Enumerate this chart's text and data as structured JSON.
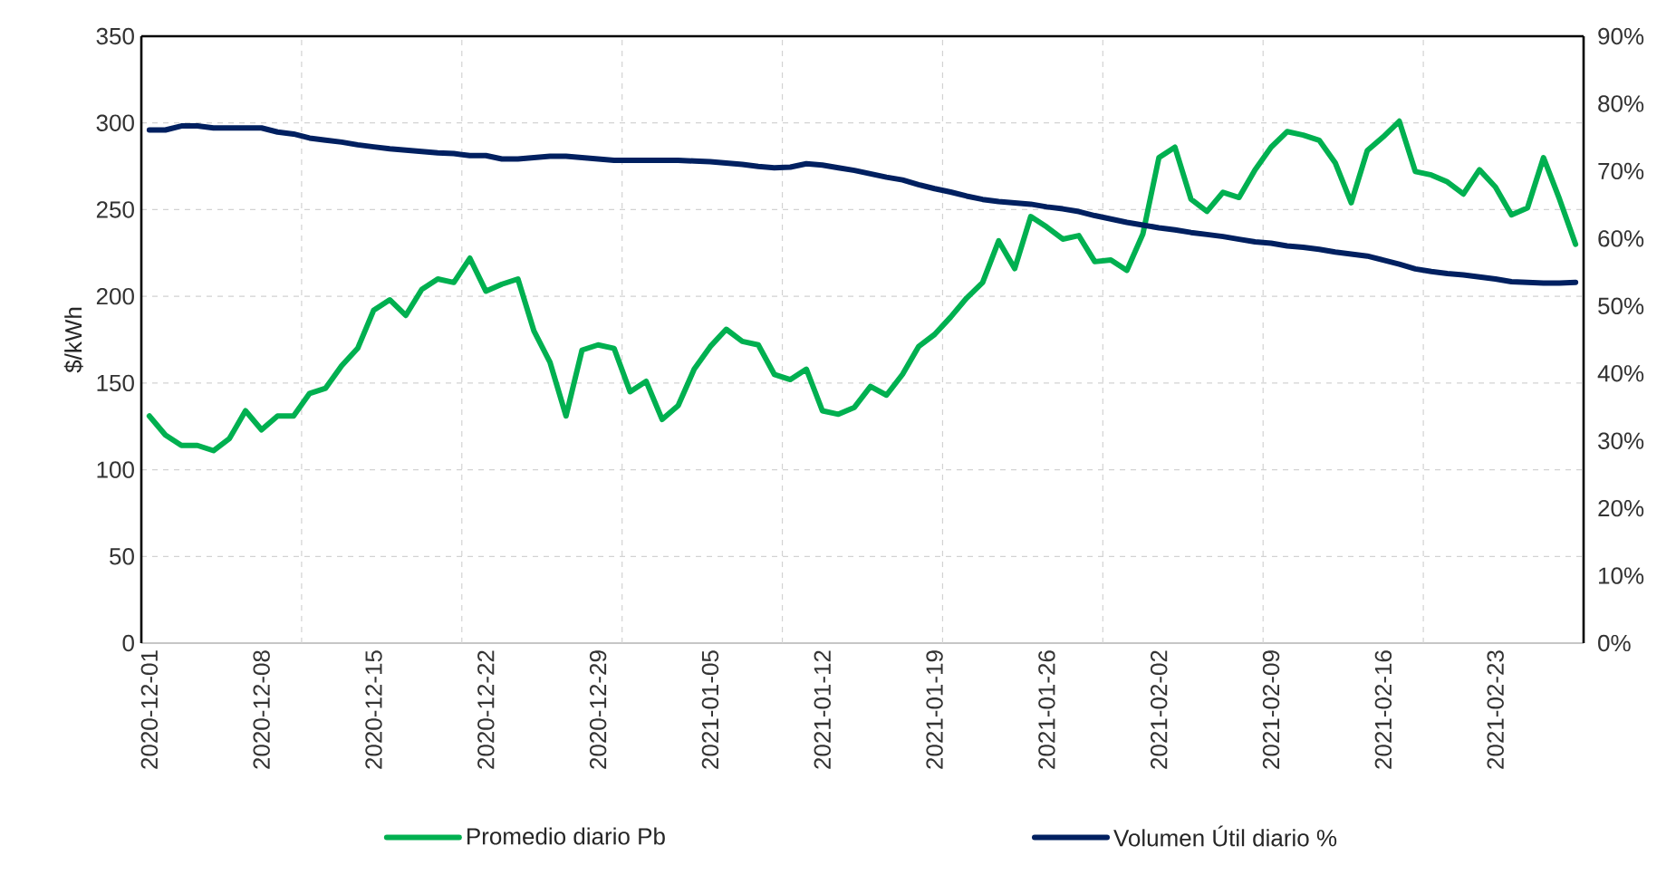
{
  "chart_data": {
    "type": "line",
    "ylabel": "$/kWh",
    "categories": [
      "2020-12-01",
      null,
      null,
      null,
      null,
      null,
      null,
      "2020-12-08",
      null,
      null,
      null,
      null,
      null,
      null,
      "2020-12-15",
      null,
      null,
      null,
      null,
      null,
      null,
      "2020-12-22",
      null,
      null,
      null,
      null,
      null,
      null,
      "2020-12-29",
      null,
      null,
      null,
      null,
      null,
      null,
      "2021-01-05",
      null,
      null,
      null,
      null,
      null,
      null,
      "2021-01-12",
      null,
      null,
      null,
      null,
      null,
      null,
      "2021-01-19",
      null,
      null,
      null,
      null,
      null,
      null,
      "2021-01-26",
      null,
      null,
      null,
      null,
      null,
      null,
      "2021-02-02",
      null,
      null,
      null,
      null,
      null,
      null,
      "2021-02-09",
      null,
      null,
      null,
      null,
      null,
      null,
      "2021-02-16",
      null,
      null,
      null,
      null,
      null,
      null,
      "2021-02-23",
      null,
      null,
      null,
      null,
      null
    ],
    "series": [
      {
        "name": "Promedio diario Pb",
        "color": "#00b050",
        "values": [
          131,
          120,
          114,
          114,
          111,
          118,
          134,
          123,
          131,
          131,
          144,
          147,
          160,
          170,
          192,
          198,
          189,
          204,
          210,
          208,
          222,
          203,
          207,
          210,
          180,
          162,
          131,
          169,
          172,
          170,
          145,
          151,
          129,
          137,
          158,
          171,
          181,
          174,
          172,
          155,
          152,
          158,
          134,
          132,
          136,
          148,
          143,
          155,
          171,
          178,
          188,
          199,
          208,
          232,
          216,
          246,
          240,
          233,
          235,
          220,
          221,
          215,
          236,
          280,
          286,
          256,
          249,
          260,
          257,
          273,
          286,
          295,
          293,
          290,
          277,
          254,
          284,
          292,
          301,
          272,
          270,
          266,
          259,
          273,
          263,
          247,
          251,
          280,
          256,
          230
        ]
      },
      {
        "name": "Volumen Útil diario %",
        "color": "#002060",
        "axis": "y2",
        "values": [
          76.1,
          76.1,
          76.7,
          76.7,
          76.4,
          76.4,
          76.4,
          76.4,
          75.8,
          75.5,
          74.9,
          74.6,
          74.3,
          73.9,
          73.6,
          73.3,
          73.1,
          72.9,
          72.7,
          72.6,
          72.3,
          72.3,
          71.8,
          71.8,
          72.0,
          72.2,
          72.2,
          72.0,
          71.8,
          71.6,
          71.6,
          71.6,
          71.6,
          71.6,
          71.5,
          71.4,
          71.2,
          71.0,
          70.7,
          70.5,
          70.6,
          71.1,
          70.9,
          70.5,
          70.1,
          69.6,
          69.1,
          68.7,
          68.0,
          67.4,
          66.9,
          66.3,
          65.8,
          65.5,
          65.3,
          65.1,
          64.7,
          64.4,
          64.0,
          63.4,
          62.9,
          62.4,
          62.0,
          61.6,
          61.3,
          60.9,
          60.6,
          60.3,
          59.9,
          59.5,
          59.3,
          58.9,
          58.7,
          58.4,
          58.0,
          57.7,
          57.4,
          56.8,
          56.2,
          55.5,
          55.1,
          54.8,
          54.6,
          54.3,
          54.0,
          53.6,
          53.5,
          53.4,
          53.4,
          53.5
        ]
      }
    ],
    "ylim": [
      0,
      350
    ],
    "yticks": [
      0,
      50,
      100,
      150,
      200,
      250,
      300,
      350
    ],
    "y2lim": [
      0,
      90
    ],
    "y2ticks": [
      {
        "value": 0,
        "label": "0%"
      },
      {
        "value": 10,
        "label": "10%"
      },
      {
        "value": 20,
        "label": "20%"
      },
      {
        "value": 30,
        "label": "30%"
      },
      {
        "value": 40,
        "label": "40%"
      },
      {
        "value": 50,
        "label": "50%"
      },
      {
        "value": 60,
        "label": "60%"
      },
      {
        "value": 70,
        "label": "70%"
      },
      {
        "value": 80,
        "label": "80%"
      },
      {
        "value": 90,
        "label": "90%"
      }
    ],
    "grid": true,
    "legend": "bottom"
  }
}
